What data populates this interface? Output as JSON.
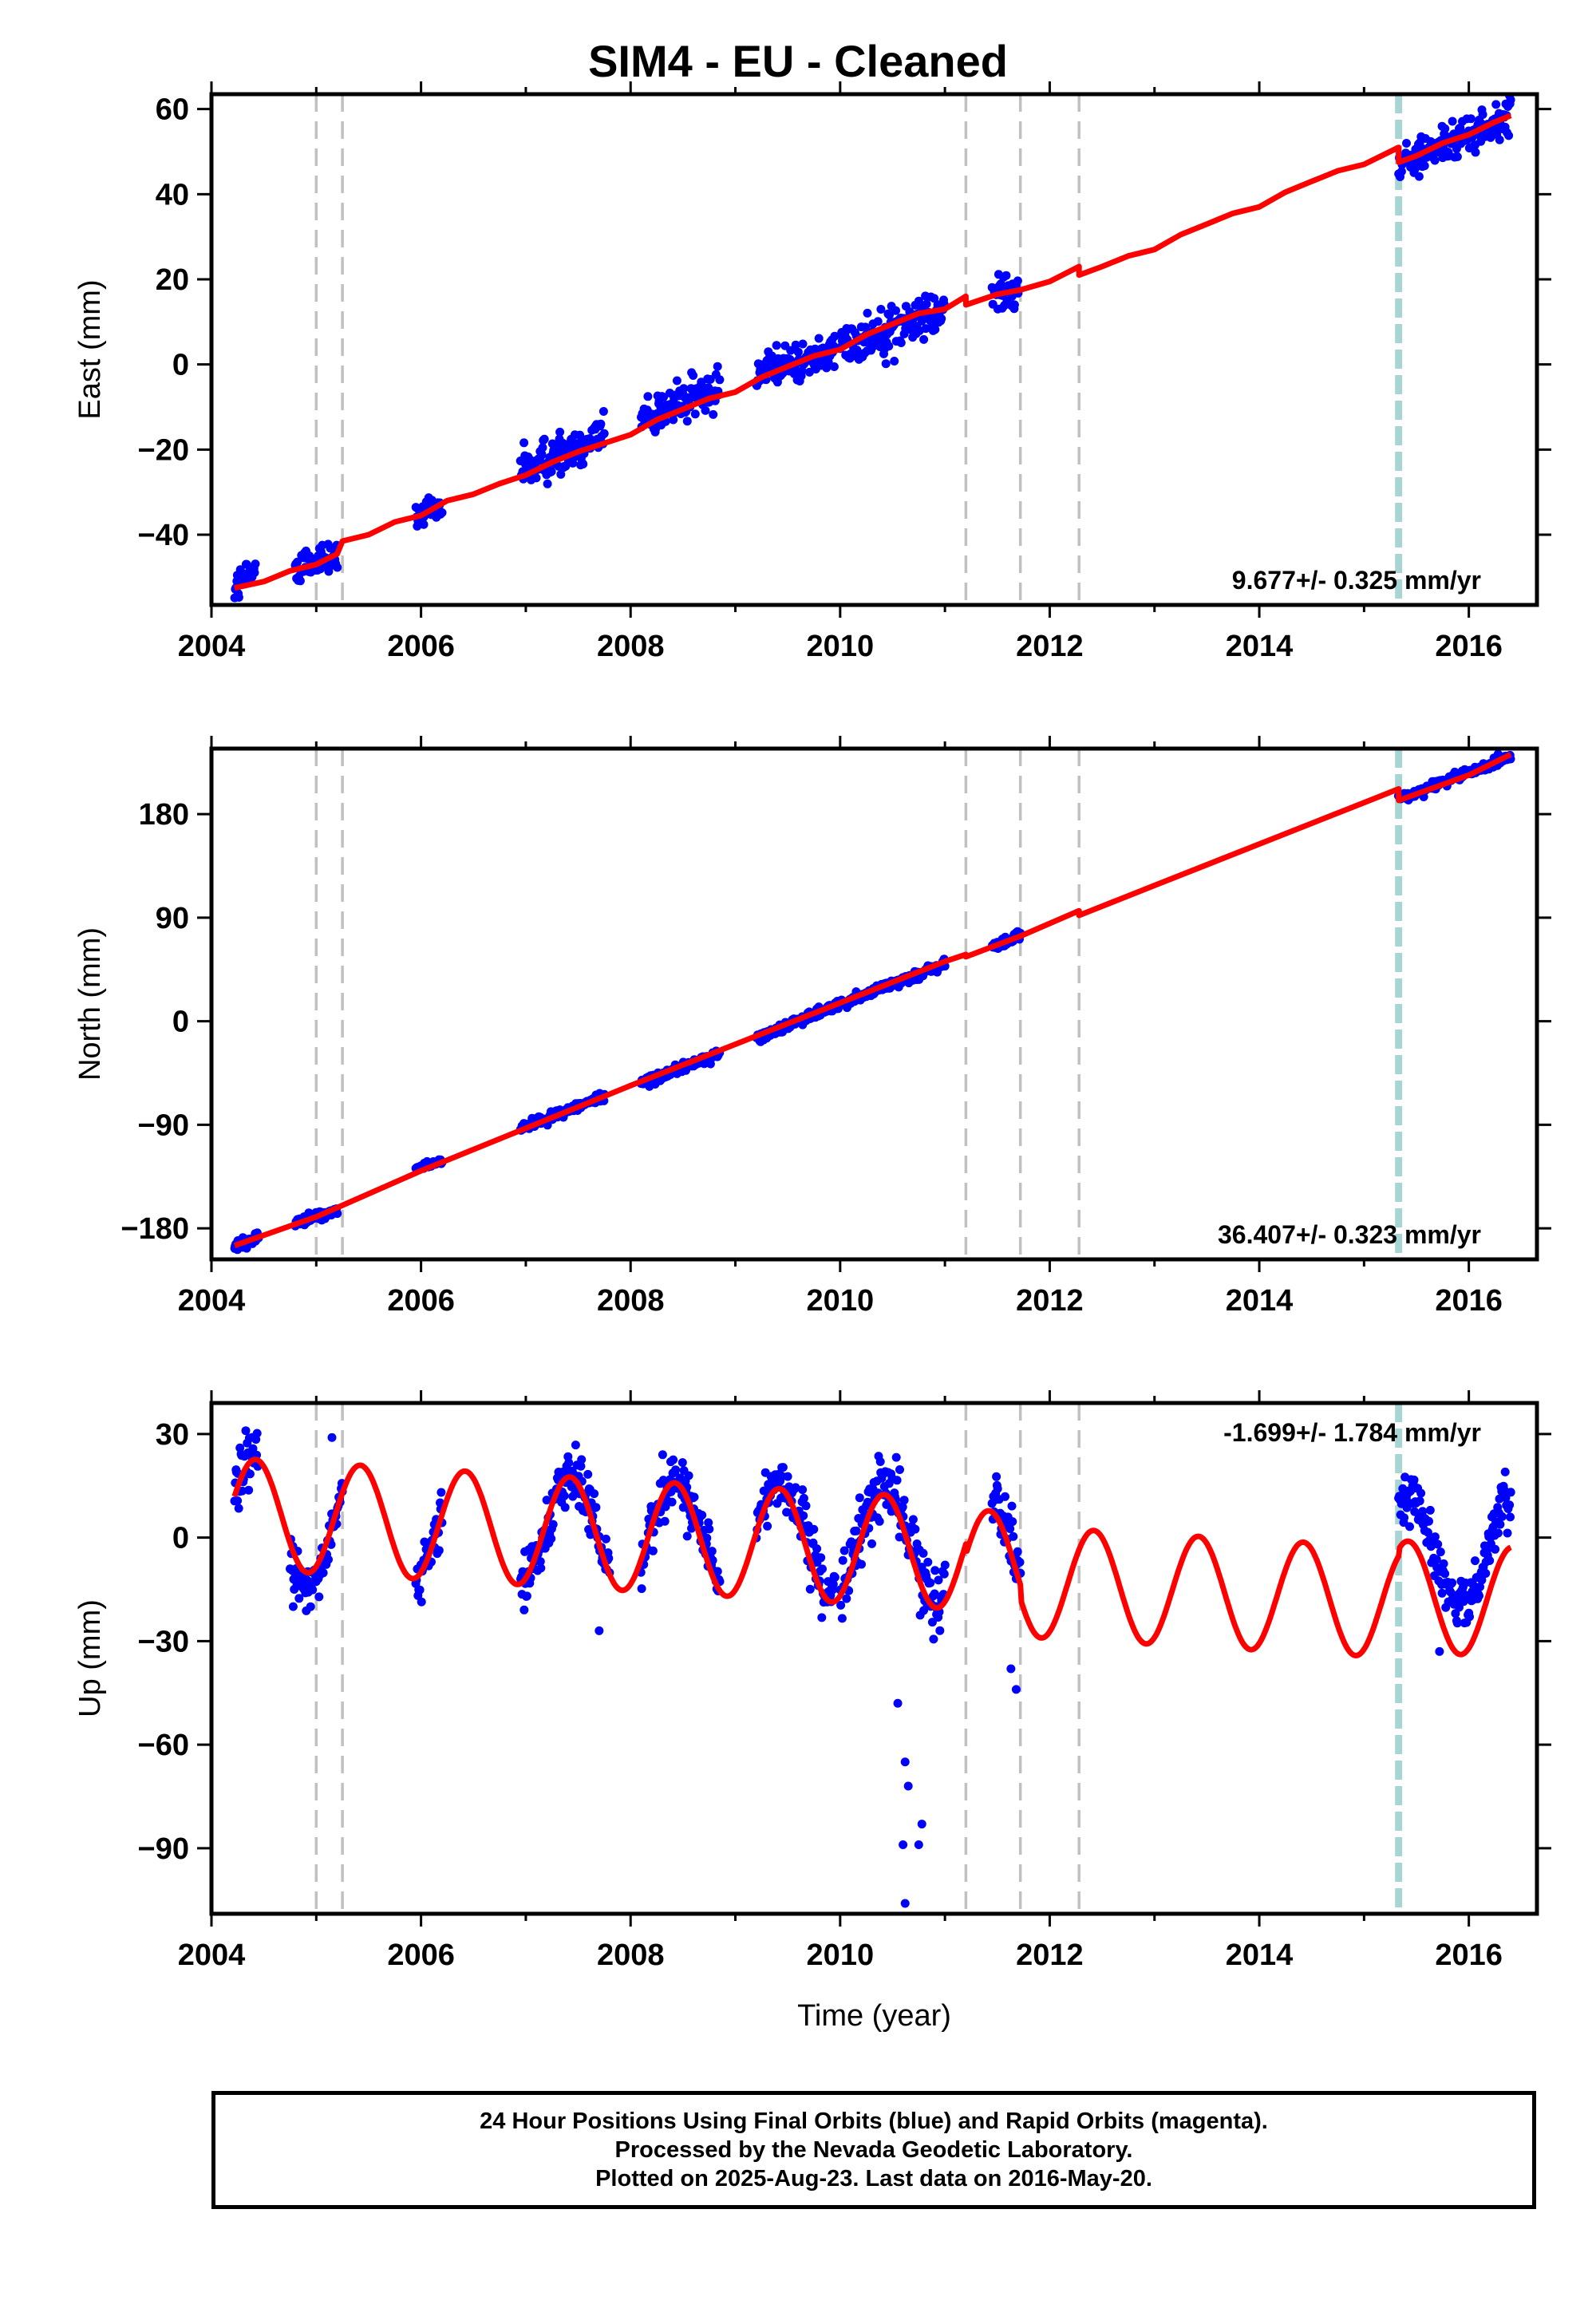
{
  "title": "SIM4  - EU - Cleaned",
  "footer": {
    "line1": "24 Hour Positions Using Final Orbits (blue) and Rapid Orbits (magenta).",
    "line2": "Processed by the Nevada Geodetic Laboratory.",
    "line3": "Plotted on 2025-Aug-23. Last data on 2016-May-20."
  },
  "colors": {
    "data_points": "#0000ff",
    "model_line": "#ff0000",
    "event_lines": "#c0c0c0",
    "equipment_change": "#a8d4d4",
    "frame": "#000000"
  },
  "chart_data": [
    {
      "type": "scatter",
      "name": "east",
      "title": "",
      "xlabel": "",
      "ylabel": "East (mm)",
      "xlim": [
        2004.0,
        2016.65
      ],
      "ylim": [
        -56.5,
        63.5
      ],
      "x_ticks": [
        2004,
        2006,
        2008,
        2010,
        2012,
        2014,
        2016
      ],
      "x_tick_labels": [
        "2004",
        "2006",
        "2008",
        "2010",
        "2012",
        "2014",
        "2016"
      ],
      "y_ticks": [
        -40,
        -20,
        0,
        20,
        40,
        60
      ],
      "y_tick_labels": [
        "−40",
        "−20",
        "0",
        "20",
        "40",
        "60"
      ],
      "rate_label": "9.677+/- 0.325 mm/yr",
      "rate_label_position": "bottom-right",
      "event_lines": [
        2005.0,
        2005.25,
        2011.2,
        2011.72,
        2012.28
      ],
      "equipment_change_lines": [
        2015.33
      ],
      "series": [
        {
          "name": "daily positions",
          "segments": [
            {
              "x_start": 2004.22,
              "x_end": 2004.42,
              "y_start": -52,
              "y_end": -49,
              "spread": 4
            },
            {
              "x_start": 2004.8,
              "x_end": 2005.2,
              "y_start": -47,
              "y_end": -45,
              "spread": 4
            },
            {
              "x_start": 2005.95,
              "x_end": 2006.2,
              "y_start": -36,
              "y_end": -34,
              "spread": 3
            },
            {
              "x_start": 2006.95,
              "x_end": 2007.75,
              "y_start": -25,
              "y_end": -16,
              "spread": 5
            },
            {
              "x_start": 2008.1,
              "x_end": 2008.85,
              "y_start": -13,
              "y_end": -5,
              "spread": 5
            },
            {
              "x_start": 2009.2,
              "x_end": 2009.95,
              "y_start": -2,
              "y_end": 3,
              "spread": 4
            },
            {
              "x_start": 2010.0,
              "x_end": 2011.0,
              "y_start": 4,
              "y_end": 13,
              "spread": 5
            },
            {
              "x_start": 2011.45,
              "x_end": 2011.7,
              "y_start": 17,
              "y_end": 18,
              "spread": 4
            },
            {
              "x_start": 2015.33,
              "x_end": 2016.4,
              "y_start": 47,
              "y_end": 58,
              "spread": 4
            }
          ]
        },
        {
          "name": "model",
          "x": [
            2004.22,
            2004.5,
            2004.75,
            2005.0,
            2005.2,
            2005.25,
            2005.5,
            2005.75,
            2006.0,
            2006.25,
            2006.5,
            2006.75,
            2007.0,
            2007.25,
            2007.5,
            2007.75,
            2008.0,
            2008.25,
            2008.5,
            2008.75,
            2009.0,
            2009.25,
            2009.5,
            2009.75,
            2010.0,
            2010.25,
            2010.5,
            2010.75,
            2011.0,
            2011.2,
            2011.2,
            2011.5,
            2011.72,
            2011.72,
            2012.0,
            2012.28,
            2012.28,
            2012.5,
            2012.75,
            2013.0,
            2013.25,
            2013.5,
            2013.75,
            2014.0,
            2014.25,
            2014.5,
            2014.75,
            2015.0,
            2015.33,
            2015.33,
            2015.5,
            2015.75,
            2016.0,
            2016.25,
            2016.4
          ],
          "y": [
            -52.5,
            -51,
            -48.5,
            -47,
            -44.5,
            -41.5,
            -40,
            -37,
            -35.5,
            -32,
            -30.5,
            -28,
            -26,
            -23,
            -20.5,
            -18.5,
            -16.5,
            -13,
            -10.5,
            -8,
            -6.5,
            -3,
            -0.5,
            2,
            3.5,
            7,
            9.5,
            12,
            13,
            16,
            14,
            16.5,
            17.5,
            17.5,
            19.5,
            23,
            21,
            23,
            25.5,
            27,
            30.5,
            33,
            35.5,
            37,
            40.5,
            43,
            45.5,
            47,
            51,
            47.5,
            49,
            52,
            54,
            57,
            58.5
          ]
        }
      ]
    },
    {
      "type": "scatter",
      "name": "north",
      "title": "",
      "xlabel": "",
      "ylabel": "North (mm)",
      "xlim": [
        2004.0,
        2016.65
      ],
      "ylim": [
        -207,
        237
      ],
      "x_ticks": [
        2004,
        2006,
        2008,
        2010,
        2012,
        2014,
        2016
      ],
      "x_tick_labels": [
        "2004",
        "2006",
        "2008",
        "2010",
        "2012",
        "2014",
        "2016"
      ],
      "y_ticks": [
        -180,
        -90,
        0,
        90,
        180
      ],
      "y_tick_labels": [
        "−180",
        "−90",
        "0",
        "90",
        "180"
      ],
      "rate_label": "36.407+/- 0.323 mm/yr",
      "rate_label_position": "bottom-right",
      "event_lines": [
        2005.0,
        2005.25,
        2011.2,
        2011.72,
        2012.28
      ],
      "equipment_change_lines": [
        2015.33
      ],
      "series": [
        {
          "name": "daily positions",
          "segments": [
            {
              "x_start": 2004.22,
              "x_end": 2004.45,
              "y_start": -196,
              "y_end": -188,
              "spread": 4
            },
            {
              "x_start": 2004.8,
              "x_end": 2005.2,
              "y_start": -174,
              "y_end": -166,
              "spread": 4
            },
            {
              "x_start": 2005.95,
              "x_end": 2006.2,
              "y_start": -128,
              "y_end": -122,
              "spread": 3
            },
            {
              "x_start": 2006.95,
              "x_end": 2007.75,
              "y_start": -93,
              "y_end": -65,
              "spread": 4
            },
            {
              "x_start": 2008.1,
              "x_end": 2008.85,
              "y_start": -54,
              "y_end": -28,
              "spread": 4
            },
            {
              "x_start": 2009.2,
              "x_end": 2010.0,
              "y_start": -15,
              "y_end": 15,
              "spread": 4
            },
            {
              "x_start": 2010.0,
              "x_end": 2011.0,
              "y_start": 15,
              "y_end": 50,
              "spread": 4
            },
            {
              "x_start": 2011.45,
              "x_end": 2011.72,
              "y_start": 63,
              "y_end": 75,
              "spread": 4
            },
            {
              "x_start": 2015.33,
              "x_end": 2016.4,
              "y_start": 193,
              "y_end": 230,
              "spread": 4
            }
          ]
        },
        {
          "name": "model",
          "x": [
            2004.22,
            2005.0,
            2005.25,
            2006.0,
            2007.0,
            2008.0,
            2009.0,
            2010.0,
            2011.0,
            2011.2,
            2011.2,
            2011.72,
            2011.72,
            2012.28,
            2012.28,
            2013.0,
            2014.0,
            2015.0,
            2015.33,
            2015.33,
            2016.0,
            2016.4
          ],
          "y": [
            -195,
            -170,
            -160,
            -130,
            -93,
            -56,
            -20,
            16,
            52,
            58,
            56,
            74,
            74,
            96,
            92,
            118,
            154,
            190,
            202,
            192,
            214,
            232
          ]
        }
      ]
    },
    {
      "type": "scatter",
      "name": "up",
      "title": "",
      "xlabel": "Time (year)",
      "ylabel": "Up (mm)",
      "xlim": [
        2004.0,
        2016.65
      ],
      "ylim": [
        -109,
        39
      ],
      "x_ticks": [
        2004,
        2006,
        2008,
        2010,
        2012,
        2014,
        2016
      ],
      "x_tick_labels": [
        "2004",
        "2006",
        "2008",
        "2010",
        "2012",
        "2014",
        "2016"
      ],
      "y_ticks": [
        -90,
        -60,
        -30,
        0,
        30
      ],
      "y_tick_labels": [
        "−90",
        "−60",
        "−30",
        "0",
        "30"
      ],
      "rate_label": "-1.699+/- 1.784 mm/yr",
      "rate_label_position": "top-right",
      "event_lines": [
        2005.0,
        2005.25,
        2011.2,
        2011.72,
        2012.28
      ],
      "equipment_change_lines": [
        2015.33
      ],
      "series": [
        {
          "name": "daily positions",
          "seasonal_amplitude_mm": 16,
          "seasonal_peak_phase_year": 0.42,
          "segments": [
            {
              "x_start": 2004.22,
              "x_end": 2004.45,
              "y_start": 7,
              "y_end": 7,
              "spread": 8
            },
            {
              "x_start": 2004.75,
              "x_end": 2005.25,
              "y_start": 3,
              "y_end": 3,
              "spread": 8
            },
            {
              "x_start": 2005.95,
              "x_end": 2006.2,
              "y_start": 3,
              "y_end": 3,
              "spread": 7
            },
            {
              "x_start": 2006.95,
              "x_end": 2007.8,
              "y_start": 2,
              "y_end": 2,
              "spread": 8
            },
            {
              "x_start": 2008.1,
              "x_end": 2008.85,
              "y_start": 1,
              "y_end": 1,
              "spread": 8
            },
            {
              "x_start": 2009.2,
              "x_end": 2009.95,
              "y_start": 0,
              "y_end": 0,
              "spread": 8
            },
            {
              "x_start": 2010.0,
              "x_end": 2011.0,
              "y_start": -1,
              "y_end": -1,
              "spread": 9
            },
            {
              "x_start": 2011.45,
              "x_end": 2011.72,
              "y_start": -3,
              "y_end": -3,
              "spread": 9
            },
            {
              "x_start": 2015.33,
              "x_end": 2016.4,
              "y_start": -4,
              "y_end": -4,
              "spread": 7
            }
          ],
          "outliers": [
            {
              "x": 2004.78,
              "y": -20
            },
            {
              "x": 2005.15,
              "y": 29
            },
            {
              "x": 2007.7,
              "y": -27
            },
            {
              "x": 2010.55,
              "y": -48
            },
            {
              "x": 2010.62,
              "y": -65
            },
            {
              "x": 2010.65,
              "y": -72
            },
            {
              "x": 2010.6,
              "y": -89
            },
            {
              "x": 2010.75,
              "y": -89
            },
            {
              "x": 2010.78,
              "y": -83
            },
            {
              "x": 2010.62,
              "y": -106
            },
            {
              "x": 2011.68,
              "y": -44
            },
            {
              "x": 2011.63,
              "y": -38
            },
            {
              "x": 2015.72,
              "y": -33
            }
          ]
        },
        {
          "name": "model",
          "seasonal_amplitude_mm": 16,
          "seasonal_peak_phase_year": 0.42,
          "trend_offset_mm": 7,
          "trend_rate_mm_per_yr": -1.699,
          "jumps": [
            {
              "x": 2011.2,
              "dy": -3
            },
            {
              "x": 2011.72,
              "dy": -4
            },
            {
              "x": 2015.33,
              "dy": 2
            }
          ]
        }
      ]
    }
  ]
}
